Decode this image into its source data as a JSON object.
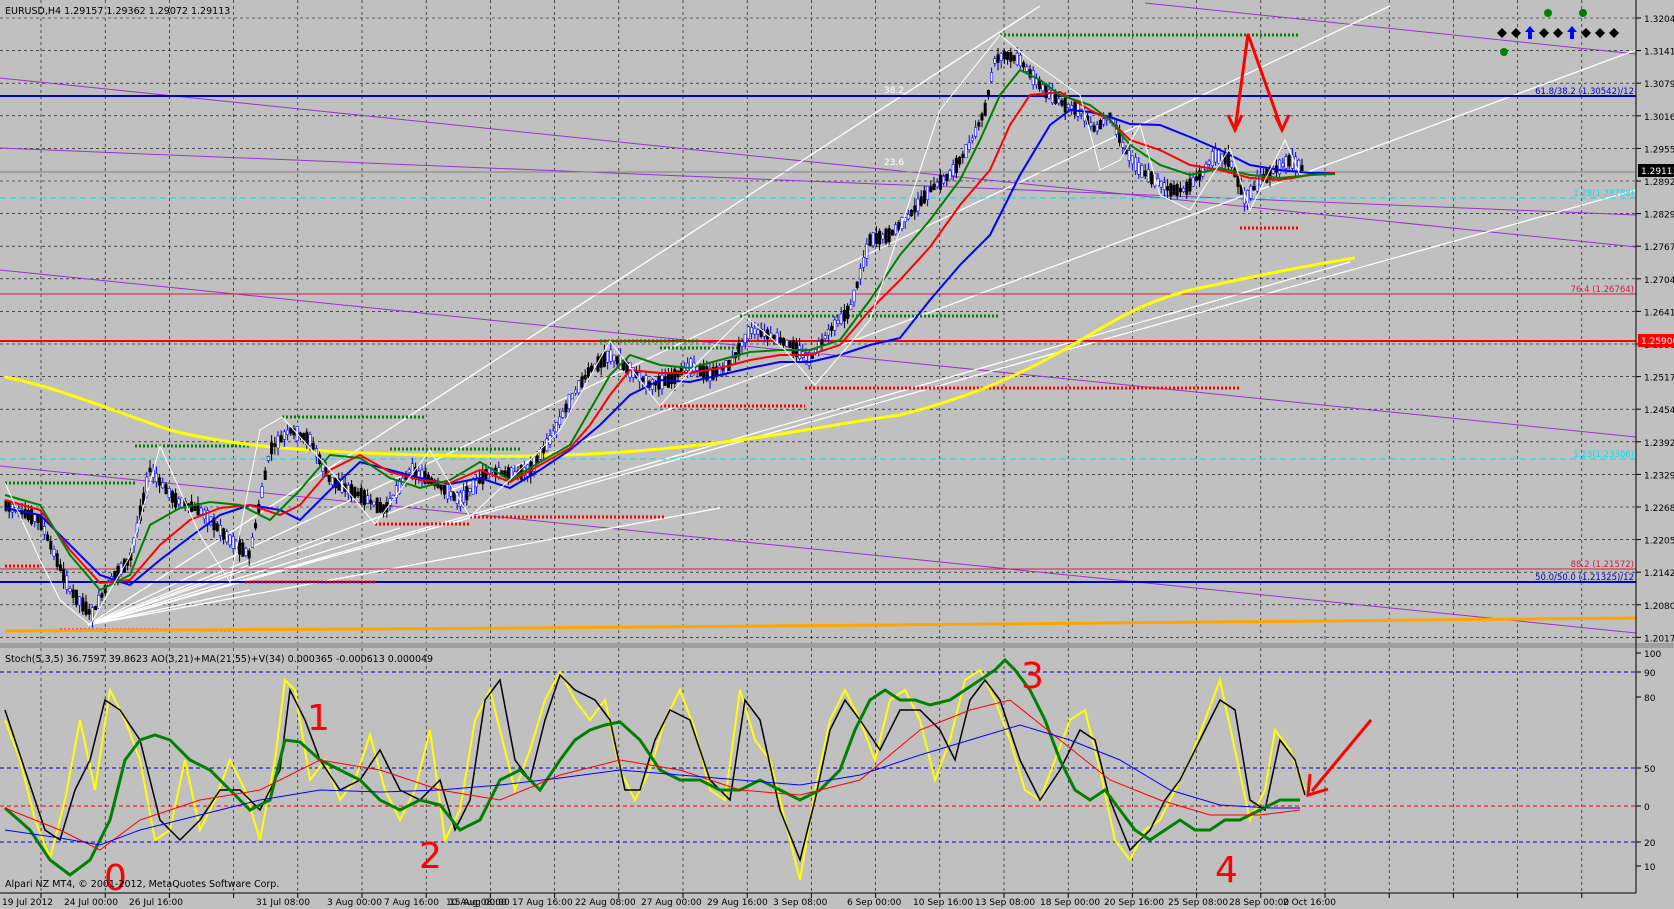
{
  "window": {
    "symbol_line": "EURUSD,H4  1.29157 1.29362 1.29072 1.29113",
    "indicator_line": "Stoch(5,3,5) 36.7597 39.8623  AO(3,21)+MA(21,55)+V(34) 0.000365 -0.000613 0.000049",
    "copyright": "Alpari NZ MT4, © 2001-2012, MetaQuotes Software Corp."
  },
  "price_axis": {
    "ticks": [
      "1.32040",
      "1.31410",
      "1.30795",
      "1.30165",
      "1.29550",
      "1.28920",
      "1.28290",
      "1.27675",
      "1.27045",
      "1.26415",
      "1.25800",
      "1.25170",
      "1.24540",
      "1.23925",
      "1.23295",
      "1.22680",
      "1.22050",
      "1.21420",
      "1.20805",
      "1.20175"
    ],
    "current_price": "1.29113",
    "highlight_price": "1.25900",
    "colors": {
      "current_bg": "#000000",
      "highlight_bg": "#ff0000"
    }
  },
  "osc_axis": {
    "ticks": [
      "100",
      "90",
      "80",
      "50",
      "20",
      "10",
      "0"
    ]
  },
  "time_axis": {
    "labels": [
      "19 Jul 2012",
      "24 Jul 00:00",
      "26 Jul 16:00",
      "31 Jul 08:00",
      "3 Aug 00:00",
      "7 Aug 16:00",
      "10 Aug 08:00",
      "15 Aug 00:00",
      "17 Aug 16:00",
      "22 Aug 08:00",
      "27 Aug 00:00",
      "29 Aug 16:00",
      "3 Sep 08:00",
      "6 Sep 00:00",
      "10 Sep 16:00",
      "13 Sep 08:00",
      "18 Sep 00:00",
      "20 Sep 16:00",
      "25 Sep 08:00",
      "28 Sep 00:00",
      "2 Oct 16:00"
    ]
  },
  "fib_labels": {
    "f618": "61.8/38.2 (1.30542)/12",
    "f764": "76.4 (1.26764)",
    "f882": "88.2 (1.21572)",
    "f500": "50.0/50.0 (1.21325)/12",
    "cyan_top": "1.28(1.28788)",
    "cyan_mid": "1.23(1.23306)"
  },
  "fan_labels": {
    "a": "38.2",
    "b": "23.6"
  },
  "wave_labels": [
    "0",
    "1",
    "2",
    "3",
    "4"
  ],
  "signal_panel": {
    "markers": [
      "diamond",
      "diamond",
      "arrow-up",
      "diamond",
      "diamond",
      "arrow-up",
      "diamond",
      "diamond",
      "diamond"
    ],
    "colors": {
      "diamond": "#000000",
      "arrow": "#0000ff",
      "dot": "#008000"
    }
  },
  "colors": {
    "background": "#c0c0c0",
    "grid": "#000000",
    "bull_candle": "#0000ff",
    "bear_candle": "#000000",
    "ma_fast": "#ff0000",
    "ma_mid": "#008000",
    "ma_slow": "#0000ff",
    "ma_200": "#ffff00",
    "ma_long": "#ffa500",
    "trendline": "#ffffff",
    "channel": "#9932cc",
    "annotation": "#ff0000"
  }
}
